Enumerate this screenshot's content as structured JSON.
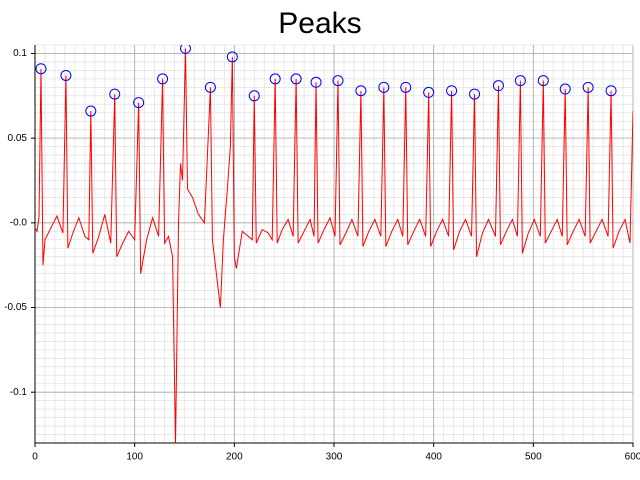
{
  "chart_data": {
    "type": "line",
    "title": "Peaks",
    "xlim": [
      0,
      600
    ],
    "xticks": [
      0,
      100,
      200,
      300,
      400,
      500,
      600
    ],
    "ylim": [
      -0.13,
      0.105
    ],
    "yticks": [
      -0.1,
      -0.05,
      {
        "value": 0,
        "label": "-0.0"
      },
      0.05,
      0.1
    ],
    "grid": true,
    "minor_grid_step": [
      10,
      0.005
    ],
    "series": [
      {
        "color": "#ff0000",
        "style": "line",
        "x": [
          0,
          2,
          4,
          6,
          8,
          10,
          16,
          22,
          28,
          31,
          33,
          38,
          44,
          50,
          54,
          56,
          58,
          64,
          70,
          76,
          80,
          82,
          88,
          94,
          100,
          104,
          106,
          112,
          118,
          124,
          128,
          130,
          134,
          138,
          141,
          144,
          146,
          148,
          151,
          153,
          158,
          164,
          170,
          176,
          178,
          182,
          186,
          189,
          193,
          196,
          198,
          200,
          202,
          208,
          214,
          218,
          220,
          222,
          228,
          234,
          238,
          241,
          243,
          248,
          254,
          259,
          262,
          264,
          270,
          276,
          280,
          282,
          284,
          290,
          296,
          301,
          304,
          306,
          312,
          318,
          324,
          327,
          329,
          335,
          341,
          347,
          350,
          352,
          358,
          364,
          369,
          372,
          374,
          380,
          386,
          392,
          395,
          397,
          403,
          409,
          415,
          418,
          420,
          426,
          432,
          438,
          441,
          443,
          449,
          455,
          462,
          465,
          467,
          473,
          479,
          484,
          487,
          489,
          495,
          501,
          507,
          510,
          512,
          518,
          524,
          529,
          532,
          534,
          540,
          546,
          552,
          555,
          557,
          563,
          569,
          575,
          578,
          580,
          586,
          592,
          597,
          600
        ],
        "values": [
          -0.003,
          -0.005,
          0.003,
          0.091,
          -0.025,
          -0.01,
          -0.003,
          0.004,
          -0.006,
          0.087,
          -0.015,
          -0.006,
          0.003,
          -0.008,
          -0.01,
          0.066,
          -0.018,
          -0.008,
          0.005,
          -0.012,
          0.076,
          -0.02,
          -0.012,
          -0.005,
          -0.01,
          0.071,
          -0.03,
          -0.01,
          0.003,
          -0.008,
          0.085,
          -0.012,
          -0.008,
          -0.02,
          -0.13,
          0.0,
          0.035,
          0.025,
          0.103,
          0.02,
          0.015,
          0.005,
          0.0,
          0.08,
          -0.01,
          -0.03,
          -0.05,
          -0.01,
          0.02,
          0.045,
          0.098,
          -0.02,
          -0.027,
          -0.005,
          -0.008,
          -0.01,
          0.075,
          -0.012,
          -0.004,
          -0.006,
          -0.01,
          0.085,
          -0.012,
          -0.004,
          0.002,
          -0.008,
          0.085,
          -0.012,
          -0.005,
          0.002,
          -0.008,
          0.083,
          -0.012,
          -0.004,
          0.003,
          -0.008,
          0.084,
          -0.013,
          -0.006,
          0.002,
          -0.008,
          0.078,
          -0.014,
          -0.005,
          0.002,
          -0.008,
          0.08,
          -0.014,
          -0.005,
          0.002,
          -0.008,
          0.08,
          -0.013,
          -0.005,
          0.002,
          -0.008,
          0.077,
          -0.014,
          -0.005,
          0.002,
          -0.008,
          0.078,
          -0.016,
          -0.005,
          0.002,
          -0.008,
          0.076,
          -0.02,
          -0.006,
          0.002,
          -0.008,
          0.081,
          -0.013,
          -0.005,
          0.002,
          -0.008,
          0.084,
          -0.018,
          -0.006,
          0.002,
          -0.008,
          0.084,
          -0.012,
          -0.005,
          0.002,
          -0.008,
          0.079,
          -0.013,
          -0.005,
          0.002,
          -0.008,
          0.08,
          -0.012,
          -0.005,
          0.002,
          -0.008,
          0.078,
          -0.015,
          -0.005,
          0.002,
          -0.012,
          0.066
        ]
      },
      {
        "color": "#0000ff",
        "style": "circle",
        "x": [
          6,
          31,
          56,
          80,
          104,
          128,
          151,
          176,
          198,
          220,
          241,
          262,
          282,
          304,
          327,
          350,
          372,
          395,
          418,
          441,
          465,
          487,
          510,
          532,
          555,
          578
        ],
        "values": [
          0.091,
          0.087,
          0.066,
          0.076,
          0.071,
          0.085,
          0.103,
          0.08,
          0.098,
          0.075,
          0.085,
          0.085,
          0.083,
          0.084,
          0.078,
          0.08,
          0.08,
          0.077,
          0.078,
          0.076,
          0.081,
          0.084,
          0.084,
          0.079,
          0.08,
          0.078
        ]
      }
    ]
  }
}
